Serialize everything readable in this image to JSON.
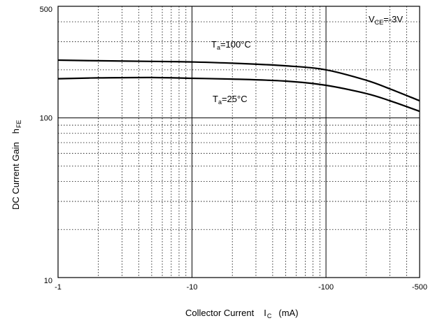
{
  "chart_data": {
    "type": "line",
    "xscale": "log",
    "yscale": "log",
    "xlim": [
      -1,
      -500
    ],
    "ylim": [
      10,
      500
    ],
    "x_ticks": [
      "-1",
      "-10",
      "-100",
      "-500"
    ],
    "x_tick_values": [
      -1,
      -10,
      -100,
      -500
    ],
    "y_ticks": [
      "500",
      "100",
      "10"
    ],
    "y_tick_values": [
      500,
      100,
      10
    ],
    "grid": true,
    "xlabel": {
      "main": "Collector Current",
      "symbol": "I",
      "subscript": "C",
      "unit": "(mA)"
    },
    "ylabel": {
      "main": "DC Current Gain",
      "symbol": "h",
      "subscript": "FE"
    },
    "condition": {
      "symbol": "V",
      "subscript": "CE",
      "value": "=-3V"
    },
    "series": [
      {
        "name": "Ta=100°C",
        "label": {
          "symbol": "T",
          "subscript": "a",
          "value": "=100°C"
        },
        "x": [
          -1,
          -2,
          -5,
          -10,
          -20,
          -50,
          -100,
          -200,
          -300,
          -500
        ],
        "y": [
          230,
          228,
          226,
          224,
          220,
          212,
          200,
          172,
          152,
          128
        ]
      },
      {
        "name": "Ta=25°C",
        "label": {
          "symbol": "T",
          "subscript": "a",
          "value": "=25°C"
        },
        "x": [
          -1,
          -2,
          -5,
          -10,
          -20,
          -50,
          -100,
          -200,
          -300,
          -500
        ],
        "y": [
          176,
          178,
          179,
          177,
          175,
          170,
          160,
          142,
          128,
          110
        ]
      }
    ]
  }
}
